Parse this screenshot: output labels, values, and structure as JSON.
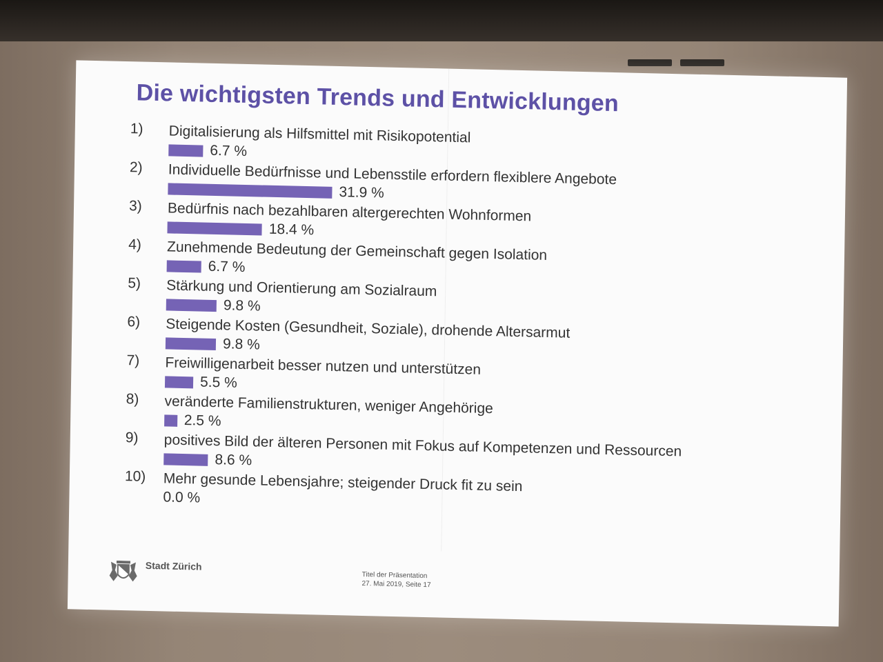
{
  "slide": {
    "title": "Die wichtigsten Trends und Entwicklungen",
    "organization": "Stadt Zürich",
    "footer_line1": "Titel der Präsentation",
    "footer_line2": "27. Mai 2019, Seite 17",
    "bar_color": "#7563b5",
    "title_color": "#5d51a6"
  },
  "chart_data": {
    "type": "bar",
    "orientation": "horizontal",
    "title": "Die wichtigsten Trends und Entwicklungen",
    "unit": "%",
    "categories": [
      "Digitalisierung als Hilfsmittel mit Risikopotential",
      "Individuelle Bedürfnisse und Lebensstile erfordern flexiblere Angebote",
      "Bedürfnis nach bezahlbaren altergerechten Wohnformen",
      "Zunehmende Bedeutung der Gemeinschaft gegen Isolation",
      "Stärkung und Orientierung am Sozialraum",
      "Steigende Kosten (Gesundheit, Soziale), drohende Altersarmut",
      "Freiwilligenarbeit besser nutzen und unterstützen",
      "veränderte Familienstrukturen, weniger Angehörige",
      "positives Bild der älteren Personen mit Fokus auf Kompetenzen und Ressourcen",
      "Mehr gesunde Lebensjahre; steigender Druck fit zu sein"
    ],
    "numbers": [
      "1)",
      "2)",
      "3)",
      "4)",
      "5)",
      "6)",
      "7)",
      "8)",
      "9)",
      "10)"
    ],
    "values": [
      6.7,
      31.9,
      18.4,
      6.7,
      9.8,
      9.8,
      5.5,
      2.5,
      8.6,
      0.0
    ],
    "value_labels": [
      "6.7 %",
      "31.9 %",
      "18.4 %",
      "6.7 %",
      "9.8 %",
      "9.8 %",
      "5.5 %",
      "2.5 %",
      "8.6 %",
      "0.0 %"
    ],
    "grid": false,
    "legend": "none"
  }
}
